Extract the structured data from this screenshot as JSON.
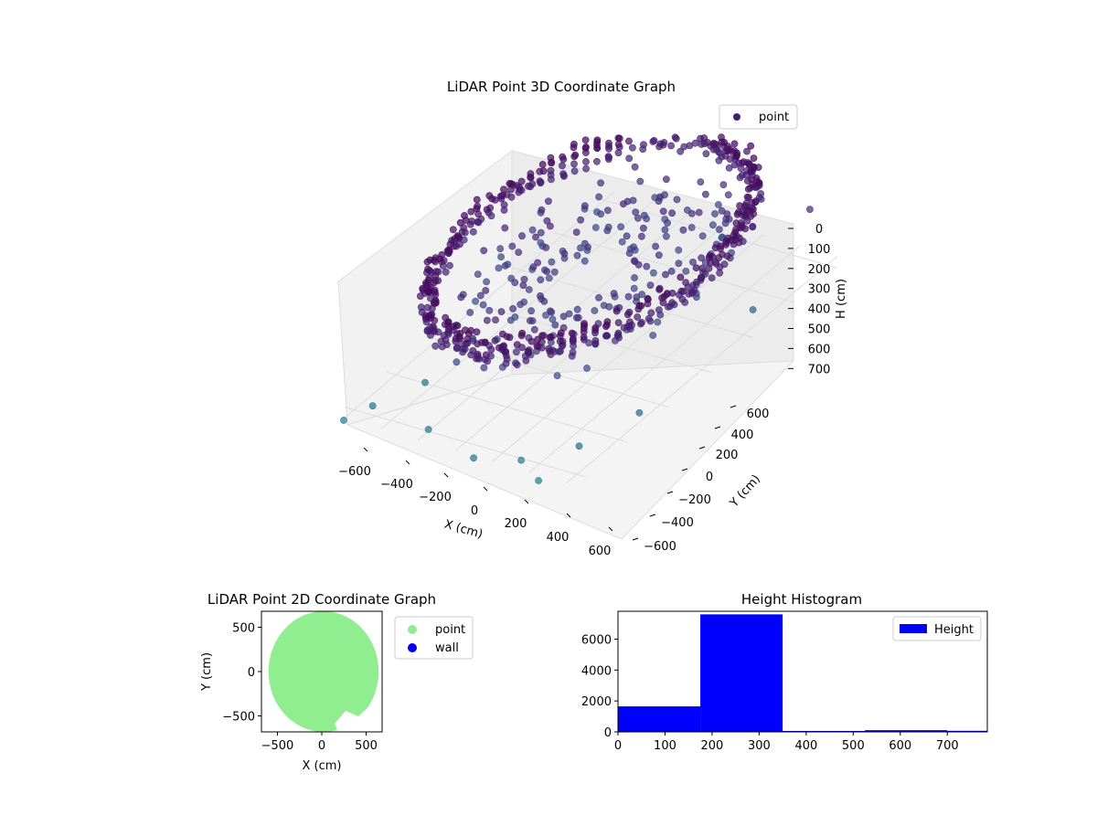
{
  "figure": {
    "background": "#ffffff"
  },
  "chart_data": [
    {
      "type": "scatter",
      "dimensions": "3d",
      "title": "LiDAR Point 3D Coordinate Graph",
      "xlabel": "X (cm)",
      "ylabel": "Y (cm)",
      "zlabel": "H (cm)",
      "xticks": [
        "−600",
        "−400",
        "−200",
        "0",
        "200",
        "400",
        "600"
      ],
      "yticks": [
        "−600",
        "−400",
        "−200",
        "0",
        "200",
        "400",
        "600"
      ],
      "zticks": [
        "0",
        "100",
        "200",
        "300",
        "400",
        "500",
        "600",
        "700"
      ],
      "xlim": [
        -650,
        650
      ],
      "ylim": [
        -650,
        650
      ],
      "zlim": [
        0,
        750
      ],
      "z_inverted": true,
      "grid": true,
      "legend": {
        "position": "upper right",
        "entries": [
          {
            "label": "point",
            "color": "#4b1b74"
          }
        ]
      },
      "series": [
        {
          "name": "point",
          "color_map": "viridis (dark purple → blue)",
          "shape": "ring wall of radius ~600 cm at H ~200–300 cm with scattered outliers",
          "ring": {
            "radius": 600,
            "h_min": 180,
            "h_max": 320
          },
          "outliers_sample": [
            [
              -600,
              -650,
              760
            ],
            [
              -500,
              -600,
              700
            ],
            [
              -420,
              -420,
              720
            ],
            [
              -300,
              600,
              650
            ],
            [
              300,
              -600,
              760
            ],
            [
              500,
              -500,
              720
            ],
            [
              600,
              -300,
              700
            ],
            [
              650,
              200,
              600
            ],
            [
              -200,
              -600,
              740
            ],
            [
              100,
              -650,
              760
            ],
            [
              450,
              -650,
              780
            ],
            [
              620,
              500,
              350
            ]
          ]
        }
      ]
    },
    {
      "type": "scatter",
      "title": "LiDAR Point 2D Coordinate Graph",
      "xlabel": "X (cm)",
      "ylabel": "Y (cm)",
      "xticks": [
        "−500",
        "0",
        "500"
      ],
      "yticks": [
        "−500",
        "0",
        "500"
      ],
      "xlim": [
        -680,
        680
      ],
      "ylim": [
        -680,
        680
      ],
      "legend": {
        "position": "outside right",
        "entries": [
          {
            "label": "point",
            "color": "#90ee90"
          },
          {
            "label": "wall",
            "color": "#0000ff"
          }
        ]
      },
      "series": [
        {
          "name": "point",
          "color": "#90ee90",
          "shape": "filled disc of radius ~600 cm centered near (20, 0)"
        },
        {
          "name": "wall",
          "color": "#0000ff",
          "values": []
        }
      ]
    },
    {
      "type": "bar",
      "subtype": "histogram",
      "title": "Height Histogram",
      "xlim": [
        0,
        785
      ],
      "ylim": [
        0,
        7800
      ],
      "xticks": [
        "0",
        "100",
        "200",
        "300",
        "400",
        "500",
        "600",
        "700"
      ],
      "yticks": [
        "0",
        "2000",
        "4000",
        "6000"
      ],
      "color": "#0000ff",
      "legend": {
        "position": "upper right",
        "entries": [
          {
            "label": "Height",
            "color": "#0000ff"
          }
        ]
      },
      "bins": [
        {
          "start": 0,
          "end": 175,
          "count": 1650
        },
        {
          "start": 175,
          "end": 350,
          "count": 7600
        },
        {
          "start": 350,
          "end": 525,
          "count": 60
        },
        {
          "start": 525,
          "end": 700,
          "count": 110
        },
        {
          "start": 700,
          "end": 785,
          "count": 70
        }
      ]
    }
  ]
}
